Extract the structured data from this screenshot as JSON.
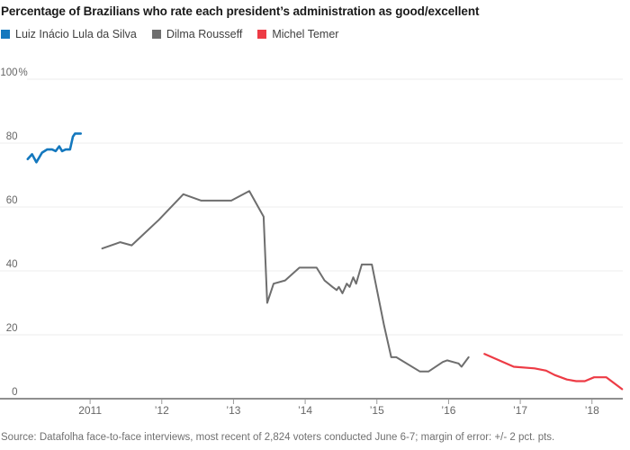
{
  "source_note": "Source: Datafolha face-to-face interviews, most recent of 2,824 voters conducted June 6-7; margin of error: +/- 2 pct. pts.",
  "chart_data": {
    "type": "line",
    "title": "Percentage of Brazilians who rate each president’s administration as good/excellent",
    "xlabel": "",
    "ylabel": "",
    "grid": true,
    "legend_position": "top",
    "x_axis": {
      "range": [
        2010.12,
        2018.43
      ],
      "ticks": [
        {
          "value": 2011,
          "label": "2011"
        },
        {
          "value": 2012,
          "label": "’12"
        },
        {
          "value": 2013,
          "label": "’13"
        },
        {
          "value": 2014,
          "label": "’14"
        },
        {
          "value": 2015,
          "label": "’15"
        },
        {
          "value": 2016,
          "label": "’16"
        },
        {
          "value": 2017,
          "label": "’17"
        },
        {
          "value": 2018,
          "label": "’18"
        }
      ]
    },
    "y_axis": {
      "range": [
        0,
        100
      ],
      "ticks": [
        {
          "value": 0,
          "label": "0"
        },
        {
          "value": 20,
          "label": "20"
        },
        {
          "value": 40,
          "label": "40"
        },
        {
          "value": 60,
          "label": "60"
        },
        {
          "value": 80,
          "label": "80"
        },
        {
          "value": 100,
          "label": "100",
          "suffix": "%"
        }
      ]
    },
    "series": [
      {
        "key": "lula",
        "name": "Luiz Inácio Lula da Silva",
        "color": "#1478be",
        "points": [
          [
            2010.13,
            75
          ],
          [
            2010.19,
            76.5
          ],
          [
            2010.25,
            74
          ],
          [
            2010.33,
            77
          ],
          [
            2010.4,
            78
          ],
          [
            2010.47,
            78
          ],
          [
            2010.52,
            77.5
          ],
          [
            2010.57,
            79
          ],
          [
            2010.61,
            77.5
          ],
          [
            2010.66,
            78
          ],
          [
            2010.72,
            78
          ],
          [
            2010.76,
            82
          ],
          [
            2010.79,
            83
          ],
          [
            2010.87,
            83
          ]
        ]
      },
      {
        "key": "dilma",
        "name": "Dilma Rousseff",
        "color": "#6e6e6e",
        "points": [
          [
            2011.17,
            47
          ],
          [
            2011.42,
            49
          ],
          [
            2011.58,
            48
          ],
          [
            2011.96,
            56
          ],
          [
            2012.3,
            64
          ],
          [
            2012.55,
            62
          ],
          [
            2012.97,
            62
          ],
          [
            2013.22,
            65
          ],
          [
            2013.42,
            57
          ],
          [
            2013.47,
            30
          ],
          [
            2013.56,
            36
          ],
          [
            2013.72,
            37
          ],
          [
            2013.92,
            41
          ],
          [
            2014.16,
            41
          ],
          [
            2014.27,
            37
          ],
          [
            2014.38,
            35
          ],
          [
            2014.44,
            34
          ],
          [
            2014.47,
            35
          ],
          [
            2014.52,
            33
          ],
          [
            2014.58,
            36
          ],
          [
            2014.62,
            35
          ],
          [
            2014.67,
            38
          ],
          [
            2014.71,
            36
          ],
          [
            2014.75,
            39
          ],
          [
            2014.79,
            42
          ],
          [
            2014.93,
            42
          ],
          [
            2015.1,
            23
          ],
          [
            2015.2,
            13
          ],
          [
            2015.27,
            13
          ],
          [
            2015.6,
            8.5
          ],
          [
            2015.72,
            8.5
          ],
          [
            2015.92,
            11.5
          ],
          [
            2015.98,
            12
          ],
          [
            2016.14,
            11
          ],
          [
            2016.18,
            10
          ],
          [
            2016.28,
            13
          ]
        ]
      },
      {
        "key": "temer",
        "name": "Michel Temer",
        "color": "#ed3b45",
        "points": [
          [
            2016.5,
            14
          ],
          [
            2016.91,
            10
          ],
          [
            2017.2,
            9.5
          ],
          [
            2017.36,
            8.8
          ],
          [
            2017.48,
            7.4
          ],
          [
            2017.65,
            6
          ],
          [
            2017.78,
            5.5
          ],
          [
            2017.9,
            5.5
          ],
          [
            2018.03,
            6.7
          ],
          [
            2018.2,
            6.7
          ],
          [
            2018.42,
            3
          ]
        ]
      }
    ]
  }
}
